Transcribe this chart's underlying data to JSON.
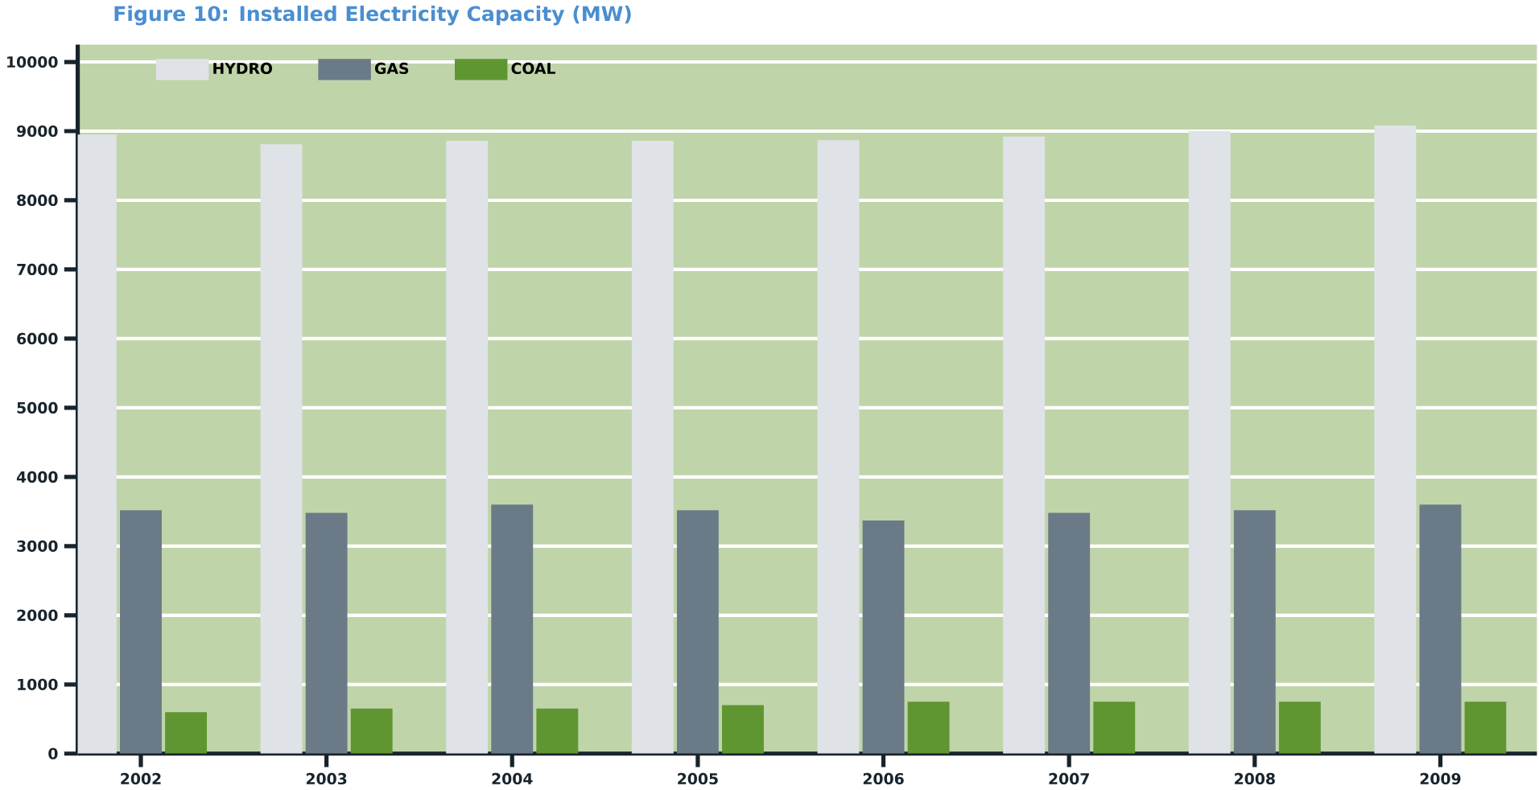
{
  "chart_data": {
    "type": "bar",
    "title": "Figure 10: Installed Electricity Capacity (MW)",
    "categories": [
      "2002",
      "2003",
      "2004",
      "2005",
      "2006",
      "2007",
      "2008",
      "2009"
    ],
    "series": [
      {
        "name": "HYDRO",
        "color": "#dfe3e7",
        "values": [
          8950,
          8810,
          8860,
          8860,
          8870,
          8920,
          9000,
          9080
        ]
      },
      {
        "name": "GAS",
        "color": "#6a7b87",
        "values": [
          3520,
          3480,
          3600,
          3520,
          3370,
          3480,
          3520,
          3600
        ]
      },
      {
        "name": "COAL",
        "color": "#5f9632",
        "values": [
          600,
          650,
          650,
          700,
          750,
          750,
          750,
          750
        ]
      }
    ],
    "ylim": [
      0,
      10250
    ],
    "yticks": [
      0,
      1000,
      2000,
      3000,
      4000,
      5000,
      6000,
      7000,
      8000,
      9000,
      10000
    ],
    "grid": "y",
    "legend": "top left"
  }
}
